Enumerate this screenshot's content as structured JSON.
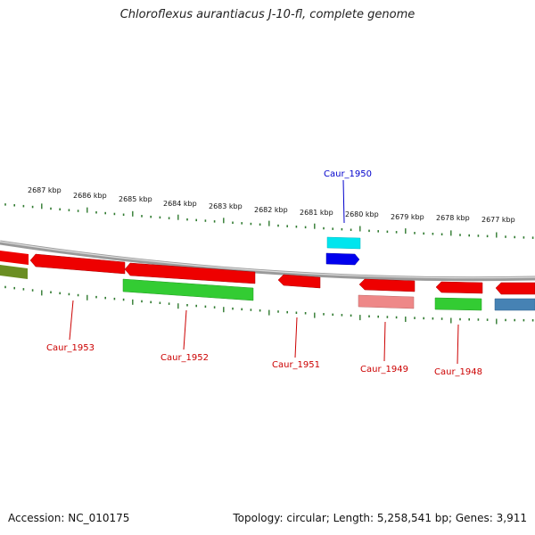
{
  "title": "Chloroflexus aurantiacus J-10-fl, complete genome",
  "footer": {
    "accession": "Accession: NC_010175",
    "summary": "Topology: circular; Length: 5,258,541 bp; Genes: 3,911"
  },
  "ruler": [
    "2687 kbp",
    "2686 kbp",
    "2685 kbp",
    "2684 kbp",
    "2683 kbp",
    "2682 kbp",
    "2681 kbp",
    "2680 kbp",
    "2679 kbp",
    "2678 kbp",
    "2677 kbp"
  ],
  "gene_labels": {
    "caur_1950": "Caur_1950",
    "caur_1953": "Caur_1953",
    "caur_1952": "Caur_1952",
    "caur_1951": "Caur_1951",
    "caur_1949": "Caur_1949",
    "caur_1948": "Caur_1948"
  },
  "colors": {
    "cds": "#ee0000",
    "cds_label": "#cc0000",
    "highlight_label": "#0000cc",
    "gene_green": "#33cc33",
    "rna_cyan": "#00e5ee",
    "blue": "#0000ee",
    "pink": "#ee8888",
    "steel": "#4682b4",
    "olive": "#6b8e23",
    "tick": "#2f7a2f",
    "backbone": "#888888"
  }
}
